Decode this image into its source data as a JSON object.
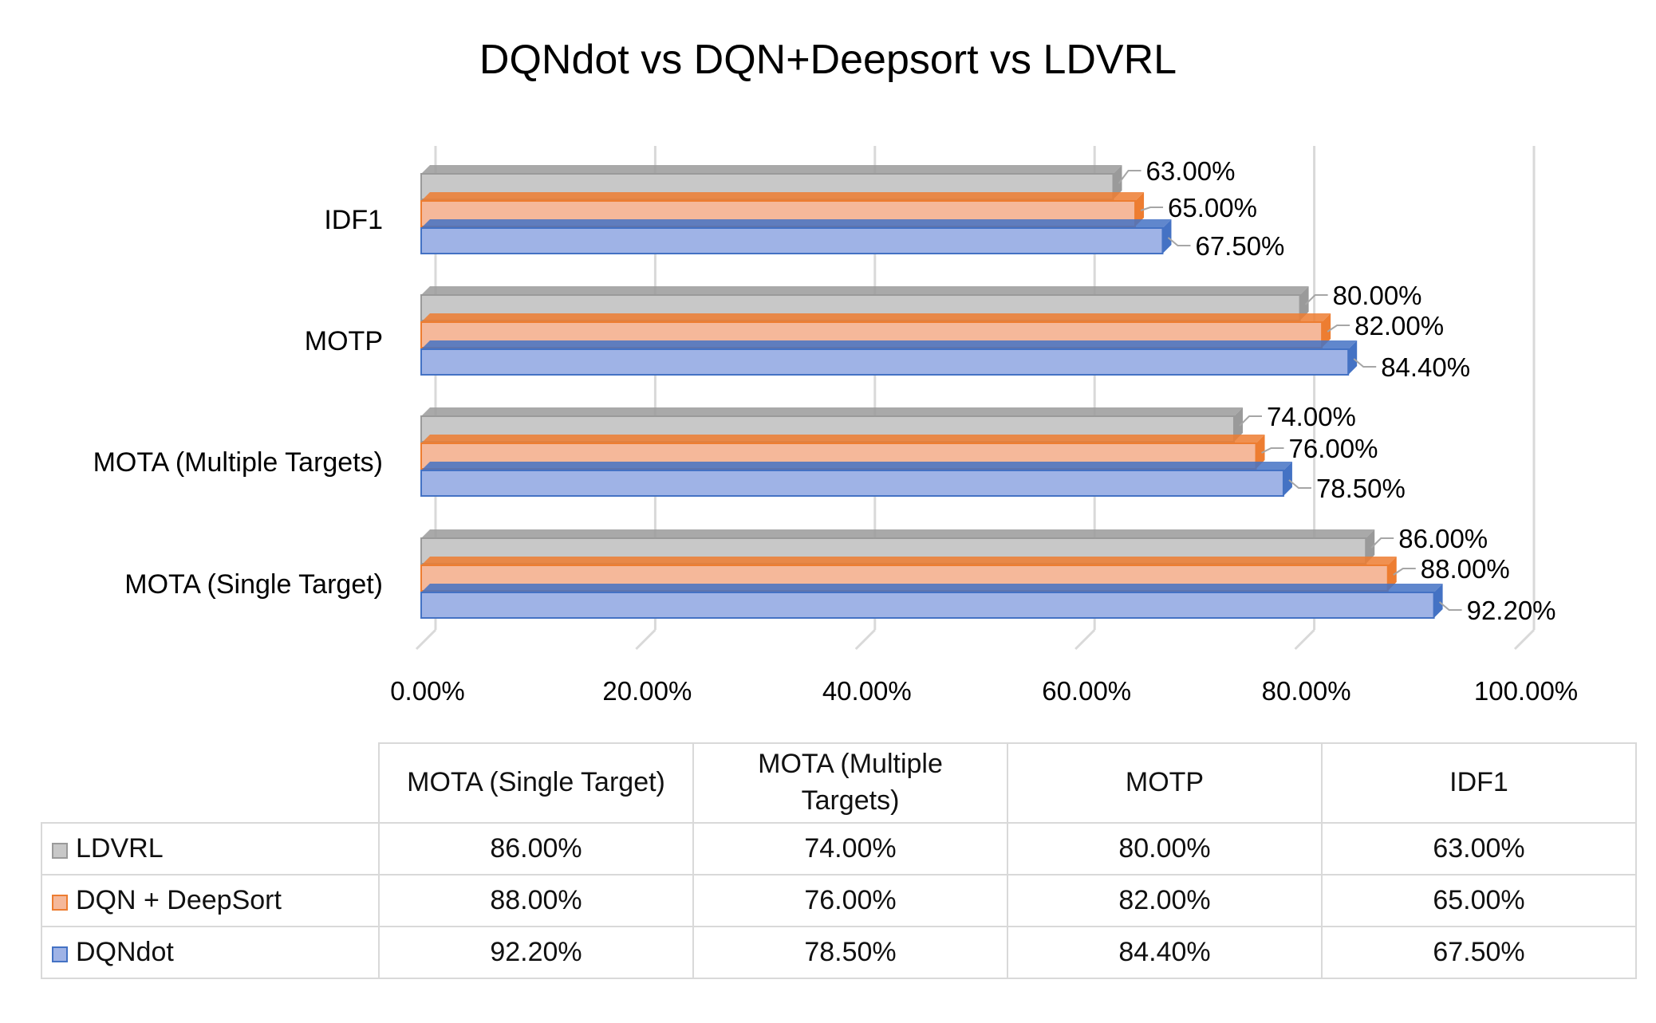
{
  "chart_data": {
    "type": "bar",
    "orientation": "horizontal",
    "title": "DQNdot vs DQN+Deepsort vs LDVRL",
    "categories": [
      "MOTA (Single Target)",
      "MOTA (Multiple Targets)",
      "MOTP",
      "IDF1"
    ],
    "series": [
      {
        "name": "LDVRL",
        "values": [
          86.0,
          74.0,
          80.0,
          63.0
        ],
        "labels": [
          "86.00%",
          "74.00%",
          "80.00%",
          "63.00%"
        ],
        "color": "#c8c8c8",
        "edge": "#9a9a9a"
      },
      {
        "name": "DQN + DeepSort",
        "values": [
          88.0,
          76.0,
          82.0,
          65.0
        ],
        "labels": [
          "88.00%",
          "76.00%",
          "82.00%",
          "65.00%"
        ],
        "color": "#f5b89a",
        "edge": "#ed7d31"
      },
      {
        "name": "DQNdot",
        "values": [
          92.2,
          78.5,
          84.4,
          67.5
        ],
        "labels": [
          "92.20%",
          "78.50%",
          "84.40%",
          "67.50%"
        ],
        "color": "#9fb3e6",
        "edge": "#4472c4"
      }
    ],
    "xlim": [
      0,
      100
    ],
    "xticks": [
      0,
      20,
      40,
      60,
      80,
      100
    ],
    "xtick_labels": [
      "0.00%",
      "20.00%",
      "40.00%",
      "60.00%",
      "80.00%",
      "100.00%"
    ],
    "grid": true,
    "data_labels": true,
    "table": {
      "column_headers": [
        [
          "MOTA (Single Target)"
        ],
        [
          "MOTA (Multiple",
          "Targets)"
        ],
        [
          "MOTP"
        ],
        [
          "IDF1"
        ]
      ]
    }
  }
}
